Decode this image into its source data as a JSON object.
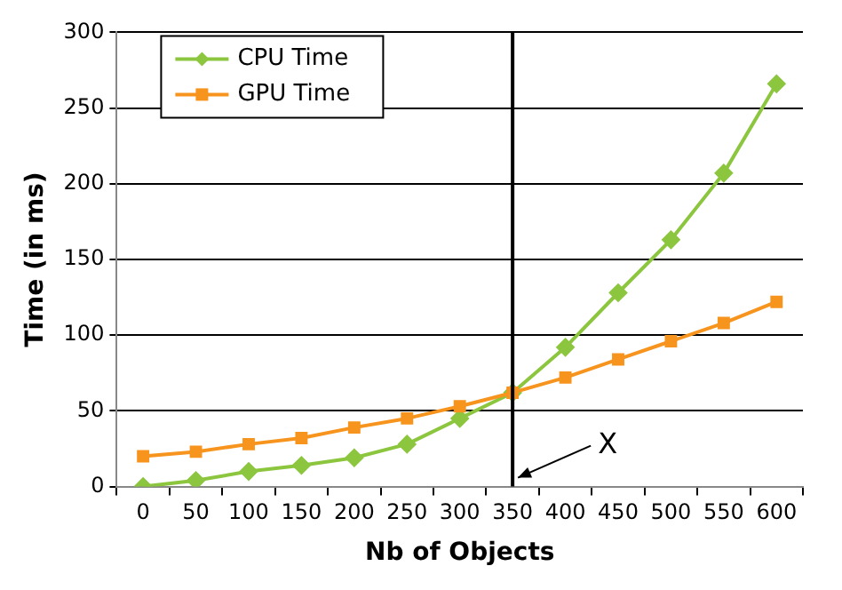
{
  "chart_data": {
    "type": "line",
    "xlabel": "Nb of Objects",
    "ylabel": "Time (in ms)",
    "categories": [
      "0",
      "50",
      "100",
      "150",
      "200",
      "250",
      "300",
      "350",
      "400",
      "450",
      "500",
      "550",
      "600"
    ],
    "series": [
      {
        "name": "CPU Time",
        "color": "#8cc63f",
        "marker": "diamond",
        "values": [
          0,
          4,
          10,
          14,
          19,
          28,
          45,
          62,
          92,
          128,
          163,
          207,
          266
        ]
      },
      {
        "name": "GPU Time",
        "color": "#f7941d",
        "marker": "square",
        "values": [
          20,
          23,
          28,
          32,
          39,
          45,
          53,
          62,
          72,
          84,
          96,
          108,
          122
        ]
      }
    ],
    "ylim": [
      0,
      300
    ],
    "yticks": [
      0,
      50,
      100,
      150,
      200,
      250,
      300
    ],
    "grid": "y",
    "legend": "top left",
    "ref_lines": [
      {
        "axis": "x",
        "value": "350",
        "color": "#000000",
        "label": "X"
      }
    ]
  }
}
